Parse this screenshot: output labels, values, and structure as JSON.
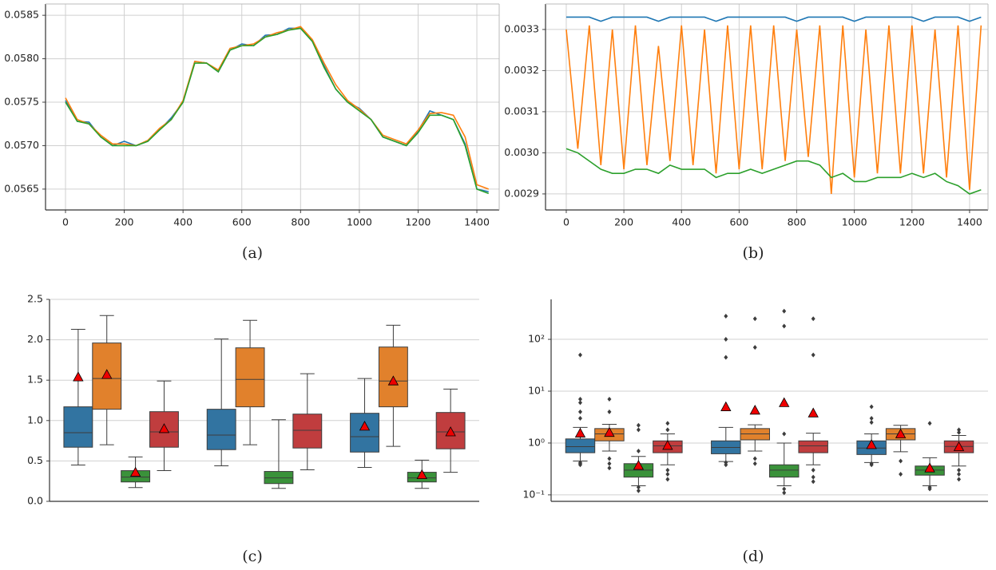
{
  "chart_data": [
    {
      "type": "line",
      "caption": "(a)",
      "grid": "both",
      "xlim": [
        -68,
        1476
      ],
      "xticks": [
        0,
        200,
        400,
        600,
        800,
        1000,
        1200,
        1400
      ],
      "ylim": [
        0.05626,
        0.05863
      ],
      "yticks": [
        0.0565,
        {
          "value": 0.057,
          "label": "0.0570"
        },
        0.0575,
        {
          "value": 0.058,
          "label": "0.0580"
        },
        0.0585
      ],
      "x": [
        0,
        40,
        80,
        120,
        160,
        200,
        240,
        280,
        320,
        360,
        400,
        440,
        480,
        520,
        560,
        600,
        640,
        680,
        720,
        760,
        800,
        840,
        880,
        920,
        960,
        1000,
        1040,
        1080,
        1120,
        1160,
        1200,
        1240,
        1280,
        1320,
        1360,
        1400,
        1440
      ],
      "series": [
        {
          "color": "#1f77b4",
          "values": [
            0.05752,
            0.05728,
            0.05727,
            0.0571,
            0.057,
            0.05705,
            0.057,
            0.05705,
            0.05718,
            0.05732,
            0.0575,
            0.05797,
            0.05795,
            0.05785,
            0.0581,
            0.05817,
            0.05815,
            0.05827,
            0.05828,
            0.05835,
            0.05835,
            0.0582,
            0.05792,
            0.05765,
            0.0575,
            0.05743,
            0.0573,
            0.0571,
            0.05705,
            0.057,
            0.05717,
            0.0574,
            0.05735,
            0.0573,
            0.05702,
            0.0565,
            0.05647
          ]
        },
        {
          "color": "#ff7f0e",
          "values": [
            0.05755,
            0.0573,
            0.05725,
            0.05712,
            0.05702,
            0.05702,
            0.057,
            0.05706,
            0.0572,
            0.0573,
            0.05752,
            0.05797,
            0.05795,
            0.05787,
            0.05812,
            0.05815,
            0.05817,
            0.05825,
            0.0583,
            0.05833,
            0.05837,
            0.05822,
            0.05795,
            0.0577,
            0.05752,
            0.05742,
            0.0573,
            0.05712,
            0.05707,
            0.05702,
            0.05718,
            0.05737,
            0.05738,
            0.05735,
            0.0571,
            0.05655,
            0.0565
          ]
        },
        {
          "color": "#2ca02c",
          "values": [
            0.0575,
            0.05728,
            0.05725,
            0.0571,
            0.057,
            0.057,
            0.057,
            0.05705,
            0.05718,
            0.0573,
            0.0575,
            0.05795,
            0.05795,
            0.05785,
            0.0581,
            0.05815,
            0.05815,
            0.05825,
            0.05828,
            0.05833,
            0.05835,
            0.0582,
            0.0579,
            0.05765,
            0.0575,
            0.0574,
            0.0573,
            0.0571,
            0.05705,
            0.057,
            0.05715,
            0.05735,
            0.05735,
            0.0573,
            0.057,
            0.0565,
            0.05645
          ]
        }
      ]
    },
    {
      "type": "line",
      "caption": "(b)",
      "grid": "both",
      "xlim": [
        -72,
        1464
      ],
      "xticks": [
        0,
        200,
        400,
        600,
        800,
        1000,
        1200,
        1400
      ],
      "ylim": [
        0.002861,
        0.003362
      ],
      "yticks": [
        0.0029,
        {
          "value": 0.003,
          "label": "0.0030"
        },
        0.0031,
        0.0032,
        0.0033
      ],
      "x": [
        0,
        40,
        80,
        120,
        160,
        200,
        240,
        280,
        320,
        360,
        400,
        440,
        480,
        520,
        560,
        600,
        640,
        680,
        720,
        760,
        800,
        840,
        880,
        920,
        960,
        1000,
        1040,
        1080,
        1120,
        1160,
        1200,
        1240,
        1280,
        1320,
        1360,
        1400,
        1440
      ],
      "series": [
        {
          "color": "#1f77b4",
          "values": [
            0.00333,
            0.00333,
            0.00333,
            0.00332,
            0.00333,
            0.00333,
            0.00333,
            0.00333,
            0.00332,
            0.00333,
            0.00333,
            0.00333,
            0.00333,
            0.00332,
            0.00333,
            0.00333,
            0.00333,
            0.00333,
            0.00333,
            0.00333,
            0.00332,
            0.00333,
            0.00333,
            0.00333,
            0.00333,
            0.00332,
            0.00333,
            0.00333,
            0.00333,
            0.00333,
            0.00333,
            0.00332,
            0.00333,
            0.00333,
            0.00333,
            0.00332,
            0.00333
          ]
        },
        {
          "color": "#ff7f0e",
          "values": [
            0.0033,
            0.00301,
            0.00331,
            0.00297,
            0.0033,
            0.00296,
            0.00331,
            0.00297,
            0.00326,
            0.00298,
            0.00331,
            0.00297,
            0.0033,
            0.00295,
            0.00331,
            0.00296,
            0.00331,
            0.00296,
            0.00331,
            0.00298,
            0.0033,
            0.00299,
            0.00331,
            0.0029,
            0.00331,
            0.00294,
            0.0033,
            0.00295,
            0.00331,
            0.00295,
            0.00331,
            0.00295,
            0.0033,
            0.00294,
            0.00331,
            0.00291,
            0.00331
          ]
        },
        {
          "color": "#2ca02c",
          "values": [
            0.00301,
            0.003,
            0.00298,
            0.00296,
            0.00295,
            0.00295,
            0.00296,
            0.00296,
            0.00295,
            0.00297,
            0.00296,
            0.00296,
            0.00296,
            0.00294,
            0.00295,
            0.00295,
            0.00296,
            0.00295,
            0.00296,
            0.00297,
            0.00298,
            0.00298,
            0.00297,
            0.00294,
            0.00295,
            0.00293,
            0.00293,
            0.00294,
            0.00294,
            0.00294,
            0.00295,
            0.00294,
            0.00295,
            0.00293,
            0.00292,
            0.0029,
            0.00291
          ]
        }
      ]
    },
    {
      "type": "box",
      "caption": "(c)",
      "grid": "y",
      "ylim": [
        0,
        2.5
      ],
      "yticks": [
        {
          "value": 0,
          "label": "0.0"
        },
        0.5,
        {
          "value": 1,
          "label": "1.0"
        },
        1.5,
        {
          "value": 2,
          "label": "2.0"
        },
        2.5
      ],
      "series": [
        {
          "color": "#3274a1",
          "boxes": [
            {
              "whislo": 0.45,
              "q1": 0.67,
              "median": 0.85,
              "q3": 1.17,
              "whishi": 2.13,
              "mean": 1.54
            },
            {
              "whislo": 0.44,
              "q1": 0.64,
              "median": 0.82,
              "q3": 1.14,
              "whishi": 2.01
            },
            {
              "whislo": 0.42,
              "q1": 0.61,
              "median": 0.8,
              "q3": 1.09,
              "whishi": 1.52,
              "mean": 0.93
            }
          ]
        },
        {
          "color": "#e1812c",
          "boxes": [
            {
              "whislo": 0.7,
              "q1": 1.14,
              "median": 1.52,
              "q3": 1.96,
              "whishi": 2.3,
              "mean": 1.57
            },
            {
              "whislo": 0.7,
              "q1": 1.17,
              "median": 1.51,
              "q3": 1.9,
              "whishi": 2.24
            },
            {
              "whislo": 0.68,
              "q1": 1.17,
              "median": 1.49,
              "q3": 1.91,
              "whishi": 2.18,
              "mean": 1.49
            }
          ]
        },
        {
          "color": "#3a923a",
          "boxes": [
            {
              "whislo": 0.17,
              "q1": 0.24,
              "median": 0.3,
              "q3": 0.38,
              "whishi": 0.55,
              "mean": 0.36
            },
            {
              "whislo": 0.16,
              "q1": 0.22,
              "median": 0.29,
              "q3": 0.37,
              "whishi": 1.01
            },
            {
              "whislo": 0.16,
              "q1": 0.24,
              "median": 0.29,
              "q3": 0.36,
              "whishi": 0.51,
              "mean": 0.33
            }
          ]
        },
        {
          "color": "#c03d3e",
          "boxes": [
            {
              "whislo": 0.38,
              "q1": 0.67,
              "median": 0.86,
              "q3": 1.11,
              "whishi": 1.49,
              "mean": 0.9
            },
            {
              "whislo": 0.39,
              "q1": 0.66,
              "median": 0.88,
              "q3": 1.08,
              "whishi": 1.58
            },
            {
              "whislo": 0.36,
              "q1": 0.65,
              "median": 0.86,
              "q3": 1.1,
              "whishi": 1.39,
              "mean": 0.86
            }
          ]
        }
      ]
    },
    {
      "type": "box",
      "caption": "(d)",
      "grid": "y",
      "log": true,
      "ylim": [
        0.075,
        590
      ],
      "yticks": [
        {
          "value": 0.1,
          "label": "10⁻¹"
        },
        {
          "value": 1,
          "label": "10⁰"
        },
        {
          "value": 10,
          "label": "10¹"
        },
        {
          "value": 100,
          "label": "10²"
        }
      ],
      "series": [
        {
          "color": "#3274a1",
          "boxes": [
            {
              "whislo": 0.45,
              "q1": 0.65,
              "median": 0.85,
              "q3": 1.2,
              "whishi": 2.0,
              "mean": 1.55,
              "fliers": [
                50,
                7,
                6,
                4,
                3,
                0.42,
                0.4,
                0.38
              ]
            },
            {
              "whislo": 0.44,
              "q1": 0.62,
              "median": 0.82,
              "q3": 1.1,
              "whishi": 2.0,
              "mean": 5,
              "fliers": [
                280,
                100,
                45,
                0.42,
                0.38
              ]
            },
            {
              "whislo": 0.42,
              "q1": 0.6,
              "median": 0.8,
              "q3": 1.1,
              "whishi": 1.5,
              "mean": 0.93,
              "fliers": [
                5,
                3,
                2.5,
                0.4,
                0.38
              ]
            }
          ]
        },
        {
          "color": "#e1812c",
          "boxes": [
            {
              "whislo": 0.7,
              "q1": 1.1,
              "median": 1.5,
              "q3": 1.9,
              "whishi": 2.3,
              "mean": 1.6,
              "fliers": [
                7,
                4,
                0.5,
                0.4,
                0.33
              ]
            },
            {
              "whislo": 0.7,
              "q1": 1.15,
              "median": 1.5,
              "q3": 1.9,
              "whishi": 2.25,
              "mean": 4.3,
              "fliers": [
                250,
                70,
                0.5,
                0.4
              ]
            },
            {
              "whislo": 0.68,
              "q1": 1.15,
              "median": 1.5,
              "q3": 1.9,
              "whishi": 2.2,
              "mean": 1.5,
              "fliers": [
                0.45,
                0.25
              ]
            }
          ]
        },
        {
          "color": "#3a923a",
          "boxes": [
            {
              "whislo": 0.15,
              "q1": 0.22,
              "median": 0.3,
              "q3": 0.4,
              "whishi": 0.55,
              "mean": 0.37,
              "fliers": [
                2.2,
                1.8,
                0.7,
                0.14,
                0.12
              ]
            },
            {
              "whislo": 0.15,
              "q1": 0.22,
              "median": 0.3,
              "q3": 0.38,
              "whishi": 1.0,
              "mean": 6,
              "fliers": [
                350,
                180,
                1.5,
                0.13,
                0.11
              ]
            },
            {
              "whislo": 0.15,
              "q1": 0.24,
              "median": 0.3,
              "q3": 0.36,
              "whishi": 0.52,
              "mean": 0.33,
              "fliers": [
                2.4,
                0.14,
                0.13
              ]
            }
          ]
        },
        {
          "color": "#c03d3e",
          "boxes": [
            {
              "whislo": 0.38,
              "q1": 0.65,
              "median": 0.88,
              "q3": 1.1,
              "whishi": 1.5,
              "mean": 0.9,
              "fliers": [
                2.4,
                1.8,
                0.3,
                0.25,
                0.2
              ]
            },
            {
              "whislo": 0.38,
              "q1": 0.65,
              "median": 0.88,
              "q3": 1.1,
              "whishi": 1.55,
              "mean": 3.8,
              "fliers": [
                250,
                50,
                0.3,
                0.22,
                0.18
              ]
            },
            {
              "whislo": 0.36,
              "q1": 0.65,
              "median": 0.86,
              "q3": 1.1,
              "whishi": 1.4,
              "mean": 0.85,
              "fliers": [
                1.8,
                1.6,
                0.3,
                0.25,
                0.2
              ]
            }
          ]
        }
      ]
    }
  ]
}
